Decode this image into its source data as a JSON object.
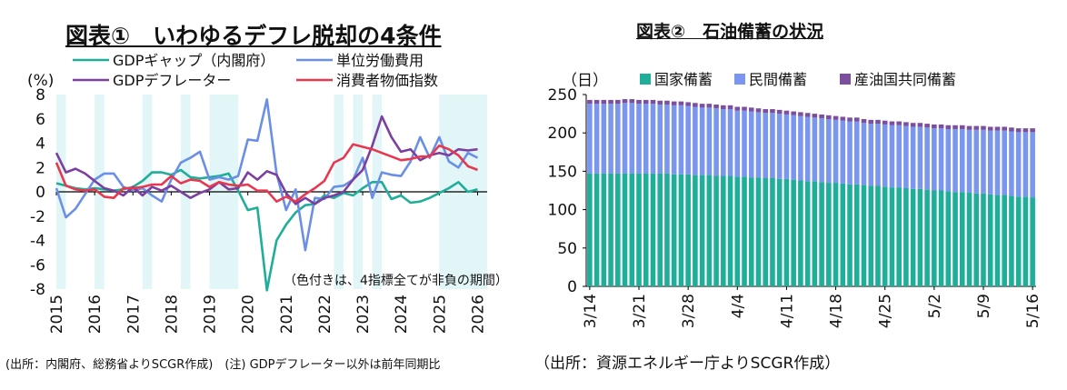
{
  "chart1": {
    "title": "図表①　いわゆるデフレ脱却の4条件",
    "unit_label": "(%)",
    "annotation": "（色付きは、4指標全てが非負の期間）",
    "note": "(出所：内閣府、総務省よりSCGR作成)　(注) GDPデフレーター以外は前年同期比"
  },
  "chart2": {
    "title": "図表②　石油備蓄の状況",
    "unit_label": "（日）",
    "note": "（出所：資源エネルギー庁よりSCGR作成）"
  },
  "colors": {
    "gdp_gap": "#1fae9a",
    "unit_labor": "#6b8fe6",
    "deflator": "#7b3fa0",
    "cpi": "#e8384f",
    "shade": "#e2f6f7",
    "national": "#1fae9a",
    "private": "#7b96ee",
    "joint": "#7b4f9e"
  },
  "chart_data": [
    {
      "type": "line",
      "title": "図表①　いわゆるデフレ脱却の4条件",
      "ylabel": "(%)",
      "ylim": [
        -8,
        8
      ],
      "yticks": [
        "8",
        "6",
        "4",
        "2",
        "0",
        "-2",
        "-4",
        "-6",
        "-8"
      ],
      "xlim": [
        2015,
        2026.25
      ],
      "xticks": [
        "2015",
        "2016",
        "2017",
        "2018",
        "2019",
        "2020",
        "2021",
        "2022",
        "2023",
        "2024",
        "2025",
        "2026"
      ],
      "shaded_periods": [
        [
          2015,
          2015.25
        ],
        [
          2016,
          2016.25
        ],
        [
          2017.25,
          2017.5
        ],
        [
          2018.25,
          2018.5
        ],
        [
          2019,
          2019.75
        ],
        [
          2022.25,
          2022.5
        ],
        [
          2022.75,
          2023
        ],
        [
          2023.25,
          2023.5
        ],
        [
          2025,
          2026.25
        ]
      ],
      "series": [
        {
          "name": "GDPギャップ（内閣府）",
          "color_key": "gdp_gap",
          "x": [
            2015,
            2015.25,
            2015.5,
            2015.75,
            2016,
            2016.25,
            2016.5,
            2016.75,
            2017,
            2017.25,
            2017.5,
            2017.75,
            2018,
            2018.25,
            2018.5,
            2018.75,
            2019,
            2019.25,
            2019.5,
            2019.75,
            2020,
            2020.25,
            2020.5,
            2020.75,
            2021,
            2021.25,
            2021.5,
            2021.75,
            2022,
            2022.25,
            2022.5,
            2022.75,
            2023,
            2023.25,
            2023.5,
            2023.75,
            2024,
            2024.25,
            2024.5,
            2024.75,
            2025,
            2025.25,
            2025.5,
            2025.75,
            2026
          ],
          "y": [
            0.7,
            0.5,
            0.3,
            0.2,
            0.3,
            0.2,
            0.1,
            0.2,
            0.4,
            0.9,
            1.6,
            1.6,
            1.4,
            1.8,
            1.2,
            1.1,
            1.2,
            1.3,
            1.5,
            0.1,
            -1.5,
            -1.3,
            -8.1,
            -4,
            -2.7,
            -1.7,
            -1.1,
            -1.0,
            -0.3,
            -0.5,
            -0.1,
            -0.3,
            0.3,
            0.8,
            0.8,
            -0.6,
            -0.3,
            -0.9,
            -0.8,
            -0.5,
            -0.1,
            0.3,
            0.8,
            0.0,
            0.2
          ]
        },
        {
          "name": "単位労働費用",
          "color_key": "unit_labor",
          "x": [
            2015,
            2015.25,
            2015.5,
            2015.75,
            2016,
            2016.25,
            2016.5,
            2016.75,
            2017,
            2017.25,
            2017.5,
            2017.75,
            2018,
            2018.25,
            2018.5,
            2018.75,
            2019,
            2019.25,
            2019.5,
            2019.75,
            2020,
            2020.25,
            2020.5,
            2020.75,
            2021,
            2021.25,
            2021.5,
            2021.75,
            2022,
            2022.25,
            2022.5,
            2022.75,
            2023,
            2023.25,
            2023.5,
            2023.75,
            2024,
            2024.25,
            2024.5,
            2024.75,
            2025,
            2025.25,
            2025.5,
            2025.75,
            2026
          ],
          "y": [
            0.3,
            -2.1,
            -1.4,
            -0.2,
            1.0,
            1.5,
            1.5,
            0.4,
            0.1,
            0.3,
            -0.3,
            -0.8,
            1.0,
            2.4,
            2.8,
            3.3,
            1.0,
            1.2,
            1.0,
            1.3,
            4.3,
            4.2,
            7.6,
            1.5,
            -1.5,
            0.2,
            -4.8,
            -0.5,
            -0.6,
            0.4,
            0.5,
            1.0,
            2.8,
            -0.5,
            1.6,
            1.4,
            1.3,
            2.5,
            4.5,
            2.8,
            4.5,
            2.5,
            2.0,
            3.2,
            2.8
          ]
        },
        {
          "name": "GDPデフレーター",
          "color_key": "deflator",
          "x": [
            2015,
            2015.25,
            2015.5,
            2015.75,
            2016,
            2016.25,
            2016.5,
            2016.75,
            2017,
            2017.25,
            2017.5,
            2017.75,
            2018,
            2018.25,
            2018.5,
            2018.75,
            2019,
            2019.25,
            2019.5,
            2019.75,
            2020,
            2020.25,
            2020.5,
            2020.75,
            2021,
            2021.25,
            2021.5,
            2021.75,
            2022,
            2022.25,
            2022.5,
            2022.75,
            2023,
            2023.25,
            2023.5,
            2023.75,
            2024,
            2024.25,
            2024.5,
            2024.75,
            2025,
            2025.25,
            2025.5,
            2025.75,
            2026
          ],
          "y": [
            3.2,
            1.6,
            1.9,
            1.5,
            0.9,
            0.3,
            0.1,
            -0.3,
            0.4,
            -0.3,
            0.4,
            0.1,
            0.5,
            0.0,
            -0.5,
            -0.1,
            0.2,
            0.8,
            0.2,
            0.3,
            1.6,
            1.0,
            1.7,
            1.4,
            -0.1,
            -1.0,
            -0.5,
            -1.0,
            -0.5,
            -0.3,
            0.0,
            1.0,
            1.8,
            3.8,
            6.2,
            4.5,
            3.3,
            3.5,
            2.6,
            3.0,
            3.2,
            3.0,
            3.5,
            3.4,
            3.5
          ]
        },
        {
          "name": "消費者物価指数",
          "color_key": "cpi",
          "x": [
            2015,
            2015.25,
            2015.5,
            2015.75,
            2016,
            2016.25,
            2016.5,
            2016.75,
            2017,
            2017.25,
            2017.5,
            2017.75,
            2018,
            2018.25,
            2018.5,
            2018.75,
            2019,
            2019.25,
            2019.5,
            2019.75,
            2020,
            2020.25,
            2020.5,
            2020.75,
            2021,
            2021.25,
            2021.5,
            2021.75,
            2022,
            2022.25,
            2022.5,
            2022.75,
            2023,
            2023.25,
            2023.5,
            2023.75,
            2024,
            2024.25,
            2024.5,
            2024.75,
            2025,
            2025.25,
            2025.5,
            2025.75,
            2026
          ],
          "y": [
            2.4,
            0.5,
            0.2,
            0.1,
            0.2,
            -0.4,
            -0.5,
            0.3,
            0.3,
            0.4,
            0.6,
            0.6,
            1.3,
            0.7,
            1.0,
            0.9,
            0.4,
            0.8,
            0.6,
            0.5,
            0.6,
            0.1,
            0.1,
            -0.8,
            -0.4,
            -0.8,
            -0.2,
            0.3,
            0.9,
            2.4,
            2.8,
            3.9,
            3.7,
            3.5,
            3.2,
            2.9,
            2.6,
            2.7,
            2.9,
            2.9,
            3.8,
            3.5,
            3.0,
            2.1,
            1.8
          ]
        }
      ]
    },
    {
      "type": "bar",
      "stacked": true,
      "title": "図表②　石油備蓄の状況",
      "ylabel": "（日）",
      "ylim": [
        0,
        250
      ],
      "yticks": [
        "0",
        "50",
        "100",
        "150",
        "200",
        "250"
      ],
      "categories": [
        "3/14",
        "3/15",
        "3/16",
        "3/17",
        "3/18",
        "3/19",
        "3/20",
        "3/21",
        "3/22",
        "3/23",
        "3/24",
        "3/25",
        "3/26",
        "3/27",
        "3/28",
        "3/29",
        "3/30",
        "3/31",
        "4/1",
        "4/2",
        "4/3",
        "4/4",
        "4/5",
        "4/6",
        "4/7",
        "4/8",
        "4/9",
        "4/10",
        "4/11",
        "4/12",
        "4/13",
        "4/14",
        "4/15",
        "4/16",
        "4/17",
        "4/18",
        "4/19",
        "4/20",
        "4/21",
        "4/22",
        "4/23",
        "4/24",
        "4/25",
        "4/26",
        "4/27",
        "4/28",
        "4/29",
        "4/30",
        "5/1",
        "5/2",
        "5/3",
        "5/4",
        "5/5",
        "5/6",
        "5/7",
        "5/8",
        "5/9",
        "5/10",
        "5/11",
        "5/12",
        "5/13",
        "5/14",
        "5/15",
        "5/16"
      ],
      "xtick_labels": [
        "3/14",
        "3/21",
        "3/28",
        "4/4",
        "4/11",
        "4/18",
        "4/25",
        "5/2",
        "5/9",
        "5/16"
      ],
      "series": [
        {
          "name": "国家備蓄",
          "color_key": "national",
          "values": [
            147,
            147,
            147,
            147,
            147,
            147,
            147,
            147,
            147,
            147,
            147,
            147,
            146,
            146,
            146,
            145,
            145,
            145,
            144,
            144,
            144,
            143,
            143,
            142,
            142,
            141,
            141,
            140,
            140,
            139,
            138,
            137,
            137,
            136,
            135,
            135,
            134,
            133,
            133,
            132,
            131,
            131,
            130,
            129,
            129,
            128,
            127,
            127,
            126,
            125,
            125,
            124,
            123,
            123,
            122,
            121,
            121,
            120,
            119,
            119,
            118,
            117,
            117,
            116
          ]
        },
        {
          "name": "民間備蓄",
          "color_key": "private",
          "values": [
            91,
            91,
            91,
            91,
            91,
            92,
            92,
            91,
            91,
            91,
            90,
            90,
            90,
            90,
            89,
            89,
            88,
            88,
            88,
            87,
            87,
            86,
            86,
            86,
            85,
            85,
            85,
            85,
            84,
            84,
            84,
            84,
            83,
            83,
            83,
            82,
            82,
            82,
            82,
            81,
            81,
            81,
            81,
            81,
            81,
            81,
            81,
            81,
            81,
            81,
            81,
            81,
            82,
            82,
            82,
            83,
            83,
            83,
            84,
            84,
            84,
            84,
            84,
            85
          ]
        },
        {
          "name": "産油国共同備蓄",
          "color_key": "joint",
          "values": [
            5,
            5,
            5,
            5,
            5,
            5,
            5,
            5,
            5,
            5,
            5,
            5,
            5,
            5,
            5,
            5,
            5,
            5,
            5,
            5,
            5,
            5,
            5,
            5,
            5,
            5,
            5,
            5,
            5,
            5,
            5,
            5,
            5,
            5,
            5,
            5,
            5,
            5,
            5,
            5,
            5,
            5,
            5,
            5,
            5,
            5,
            5,
            5,
            5,
            5,
            5,
            5,
            5,
            5,
            5,
            5,
            5,
            5,
            5,
            5,
            5,
            5,
            5,
            5
          ]
        }
      ]
    }
  ]
}
